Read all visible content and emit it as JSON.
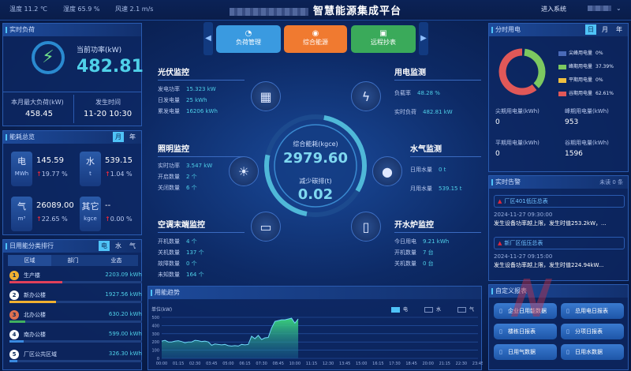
{
  "header": {
    "title": "智慧能源集成平台",
    "weather": [
      "温度 11.2 ℃",
      "湿度 65.9 %",
      "风速 2.1 m/s"
    ],
    "enter_system": "进入系统"
  },
  "nav": {
    "buttons": [
      {
        "label": "负荷管理",
        "color": "#3a9ae0",
        "icon": "gauge-icon"
      },
      {
        "label": "综合能源",
        "color": "#f07a30",
        "icon": "energy-icon"
      },
      {
        "label": "远程抄表",
        "color": "#3aaa5a",
        "icon": "meter-icon"
      }
    ]
  },
  "realtime_load": {
    "title": "实时负荷",
    "power_label": "当前功率(kW)",
    "power_value": "482.81",
    "max_label": "本月最大负荷(kW)",
    "max_value": "458.45",
    "time_label": "发生时间",
    "time_value": "11-20 10:30"
  },
  "energy_overview": {
    "title": "能耗总览",
    "tabs": [
      "月",
      "年"
    ],
    "active_tab": "月",
    "items": [
      {
        "name": "电",
        "unit": "MWh",
        "value": "145.59",
        "change": "19.77 %"
      },
      {
        "name": "水",
        "unit": "t",
        "value": "539.15",
        "change": "1.04 %"
      },
      {
        "name": "气",
        "unit": "m³",
        "value": "26089.00",
        "change": "22.65 %"
      },
      {
        "name": "其它",
        "unit": "kgce",
        "value": "--",
        "change": "0.00 %"
      }
    ]
  },
  "ranking": {
    "title": "日用能分类排行",
    "tabs": [
      "电",
      "水",
      "气"
    ],
    "active_tab": "电",
    "subtabs": [
      "区域",
      "部门",
      "业态"
    ],
    "items": [
      {
        "rank": "1",
        "name": "生产楼",
        "value": "2203.09 kWh",
        "pct": 40,
        "color": "#e0405a"
      },
      {
        "rank": "2",
        "name": "新办公楼",
        "value": "1927.56 kWh",
        "pct": 35,
        "color": "#f0b030"
      },
      {
        "rank": "3",
        "name": "北办公楼",
        "value": "630.20 kWh",
        "pct": 12,
        "color": "#40b060"
      },
      {
        "rank": "4",
        "name": "南办公楼",
        "value": "599.00 kWh",
        "pct": 11,
        "color": "#3a8ae0"
      },
      {
        "rank": "5",
        "name": "厂区公共区域",
        "value": "326.30 kWh",
        "pct": 6,
        "color": "#3a8ae0"
      }
    ]
  },
  "monitors": {
    "pv": {
      "title": "光伏监控",
      "rows": [
        [
          "发电功率",
          "15.323 kW"
        ],
        [
          "日发电量",
          "25 kWh"
        ],
        [
          "累发电量",
          "16206 kWh"
        ]
      ]
    },
    "light": {
      "title": "照明监控",
      "rows": [
        [
          "实时功率",
          "3.547 kW"
        ],
        [
          "开启数量",
          "2 个"
        ],
        [
          "关闭数量",
          "6 个"
        ]
      ]
    },
    "ac": {
      "title": "空调末端监控",
      "rows": [
        [
          "开机数量",
          "4 个"
        ],
        [
          "关机数量",
          "137 个"
        ],
        [
          "故障数量",
          "0 个"
        ],
        [
          "未知数量",
          "164 个"
        ]
      ]
    },
    "power": {
      "title": "用电监测",
      "rows": [
        [
          "负载率",
          "48.28 %"
        ],
        [
          "实时负荷",
          "482.81 kW"
        ]
      ]
    },
    "water": {
      "title": "水气监测",
      "rows": [
        [
          "日用水量",
          "0 t"
        ],
        [
          "月用水量",
          "539.15 t"
        ]
      ]
    },
    "boiler": {
      "title": "开水炉监控",
      "rows": [
        [
          "今日用电",
          "9.21 kWh"
        ],
        [
          "开机数量",
          "7 台"
        ],
        [
          "关机数量",
          "0 台"
        ]
      ]
    }
  },
  "center": {
    "consumption_label": "综合能耗(kgce)",
    "consumption_value": "2979.60",
    "carbon_label": "减少碳排(t)",
    "carbon_value": "0.02"
  },
  "tou": {
    "title": "分时用电",
    "tabs": [
      "日",
      "月",
      "年"
    ],
    "active_tab": "日",
    "legend": [
      {
        "name": "尖峰用电量",
        "pct": "0%",
        "color": "#4a6ab8",
        "value": 0
      },
      {
        "name": "峰期用电量",
        "pct": "37.39%",
        "color": "#7cc860",
        "value": 37.39
      },
      {
        "name": "平期用电量",
        "pct": "0%",
        "color": "#f0c040",
        "value": 0
      },
      {
        "name": "谷期用电量",
        "pct": "62.61%",
        "color": "#e05858",
        "value": 62.61
      }
    ],
    "stats": [
      {
        "label": "尖期用电量(kWh)",
        "value": "0"
      },
      {
        "label": "峰期用电量(kWh)",
        "value": "953"
      },
      {
        "label": "平期用电量(kWh)",
        "value": "0"
      },
      {
        "label": "谷期用电量(kWh)",
        "value": "1596"
      }
    ]
  },
  "alarm": {
    "title": "实时告警",
    "unread": "未读 0 条",
    "items": [
      {
        "name": "厂区401低压总表",
        "time": "2024-11-27 09:30:00",
        "msg": "发生设备功率越上限，发生时值253.2kW，..."
      },
      {
        "name": "新厂区低压总表",
        "time": "2024-11-27 09:15:00",
        "msg": "发生设备功率越上限，发生时值224.94kW..."
      }
    ]
  },
  "reports": {
    "title": "自定义报表",
    "buttons": [
      "企业日用能数据",
      "总用电日报表",
      "楼栋日报表",
      "分项日报表",
      "日用气数据",
      "日用水数据"
    ]
  },
  "chart_data": {
    "type": "area",
    "title": "用能趋势",
    "ylabel": "单位(kW)",
    "ylim": [
      0,
      500
    ],
    "yticks": [
      0,
      100,
      200,
      300,
      400,
      500
    ],
    "grid": true,
    "legend": [
      {
        "name": "电",
        "active": true,
        "color": "#4fc3f7"
      },
      {
        "name": "水",
        "active": false
      },
      {
        "name": "气",
        "active": false
      }
    ],
    "legend_position": "top-right",
    "xticks": [
      "00:00",
      "01:15",
      "02:30",
      "03:45",
      "05:00",
      "06:15",
      "07:30",
      "08:45",
      "10:00",
      "11:15",
      "12:30",
      "13:45",
      "15:00",
      "16:15",
      "17:30",
      "18:45",
      "20:00",
      "21:15",
      "22:30",
      "23:45"
    ],
    "x_interval": "15 min",
    "series": [
      {
        "name": "电",
        "values": [
          210,
          220,
          200,
          200,
          210,
          215,
          205,
          190,
          200,
          200,
          220,
          215,
          205,
          210,
          200,
          160,
          175,
          170,
          165,
          170,
          155,
          150,
          155,
          150,
          170,
          165,
          170,
          270,
          240,
          280,
          230,
          250,
          255,
          370,
          450,
          460,
          470,
          470,
          480,
          490,
          430,
          480
        ]
      }
    ]
  },
  "watermark": "新联电子"
}
